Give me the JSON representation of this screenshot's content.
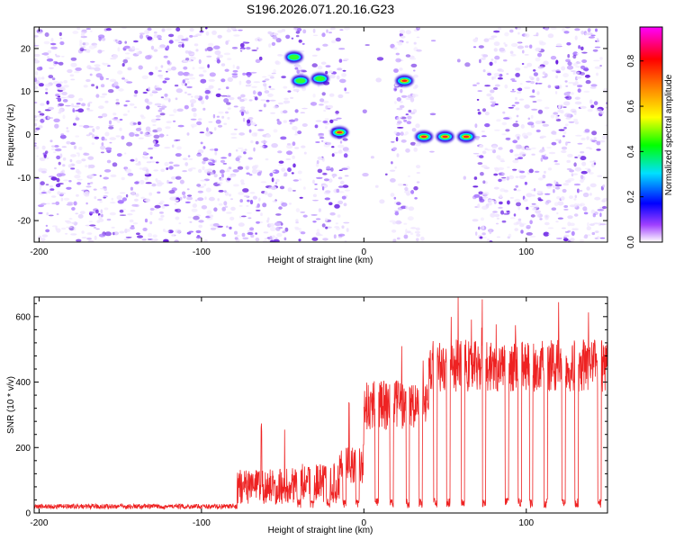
{
  "chart_data": [
    {
      "type": "heatmap",
      "title": "S196.2026.071.20.16.G23",
      "xlabel": "Height of straight line (km)",
      "ylabel": "Frequency (Hz)",
      "xlim": [
        -203,
        150
      ],
      "ylim": [
        -25,
        25
      ],
      "xticks": [
        -200,
        -100,
        0,
        100
      ],
      "yticks": [
        -20,
        -10,
        0,
        10,
        20
      ],
      "colorbar": {
        "label": "Normalized spectral amplitude",
        "range": [
          0,
          0.95
        ],
        "ticks": [
          "0.0",
          "0.2",
          "0.4",
          "0.6",
          "0.8"
        ],
        "colors": [
          "#ffffff",
          "#a040ff",
          "#0000ff",
          "#00e0ff",
          "#00ff00",
          "#ffff00",
          "#ff8000",
          "#ff0000",
          "#ff00ff"
        ]
      },
      "features": [
        {
          "x": -43,
          "freq": 18,
          "amplitude": 0.4
        },
        {
          "x": -39,
          "freq": 12.5,
          "amplitude": 0.5
        },
        {
          "x": -27,
          "freq": 13,
          "amplitude": 0.45
        },
        {
          "x": -15,
          "freq": 0.5,
          "amplitude": 0.65
        },
        {
          "x": 25,
          "freq": 12.5,
          "amplitude": 0.85
        },
        {
          "x": 37,
          "freq": -0.5,
          "amplitude": 0.9
        },
        {
          "x": 50,
          "freq": -0.5,
          "amplitude": 0.9
        },
        {
          "x": 63,
          "freq": -0.5,
          "amplitude": 0.9
        }
      ],
      "empty_regions": [
        [
          -36,
          -31
        ],
        [
          -10,
          17
        ],
        [
          34,
          68
        ]
      ]
    },
    {
      "type": "line",
      "xlabel": "Height of straight line (km)",
      "ylabel": "SNR (10 * v/v)",
      "xlim": [
        -203,
        150
      ],
      "ylim": [
        0,
        660
      ],
      "xticks": [
        -200,
        -100,
        0,
        100
      ],
      "yticks": [
        0,
        200,
        400,
        600
      ],
      "series": [
        {
          "name": "SNR",
          "color": "#ee2222"
        }
      ],
      "segments": [
        {
          "x": [
            -203,
            -78
          ],
          "level": 20,
          "spread": 15
        },
        {
          "x": [
            -78,
            -48
          ],
          "level": 80,
          "spread": 110,
          "peak": 290
        },
        {
          "x": [
            -48,
            -15
          ],
          "level": 90,
          "spread": 120
        },
        {
          "x": [
            -15,
            0
          ],
          "level": 150,
          "spread": 120,
          "peak": 390
        },
        {
          "x": [
            0,
            40
          ],
          "level": 330,
          "spread": 150,
          "peak": 520
        },
        {
          "x": [
            40,
            150
          ],
          "level": 450,
          "spread": 160,
          "peak": 660
        }
      ],
      "dips": [
        -40,
        -32,
        -22,
        -12,
        -4,
        8,
        17,
        27,
        35,
        44,
        52,
        61,
        74,
        88,
        96,
        103,
        112,
        123,
        131,
        145
      ],
      "dip_level": 30
    }
  ]
}
